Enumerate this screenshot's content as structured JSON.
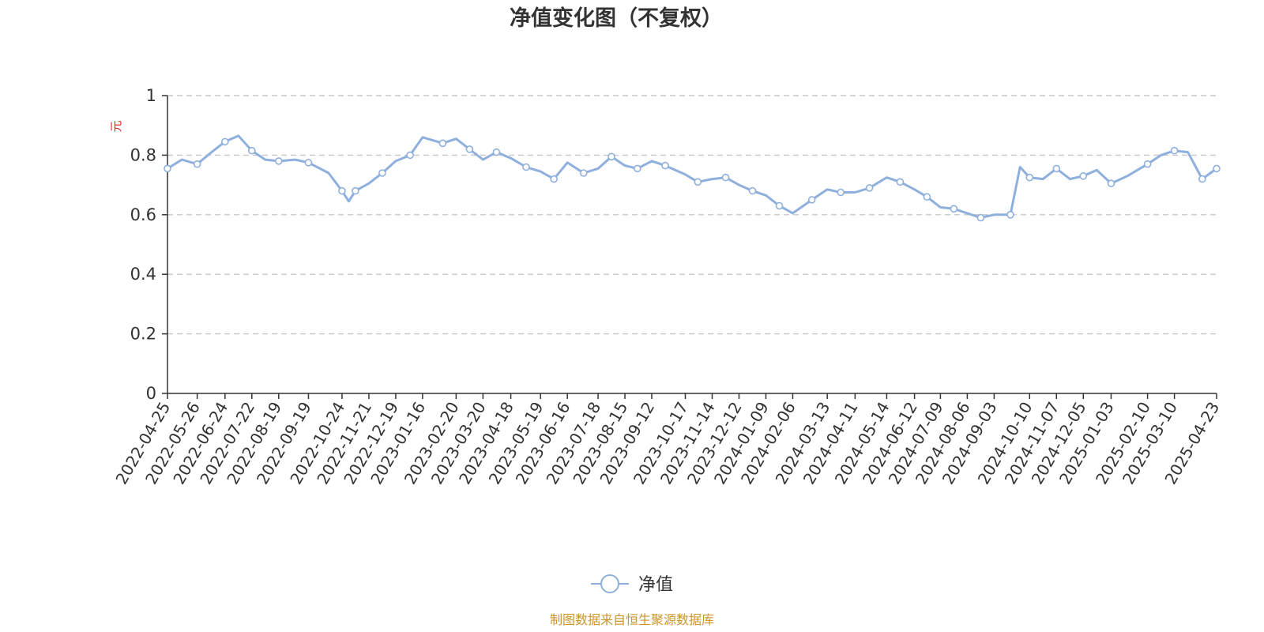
{
  "chart_data": {
    "type": "line",
    "title": "净值变化图（不复权）",
    "ylabel": "元",
    "ylim": [
      0,
      1
    ],
    "yticks": [
      0,
      0.2,
      0.4,
      0.6,
      0.8,
      1
    ],
    "grid": true,
    "legend_position": "bottom-center",
    "x_tick_labels": [
      "2022-04-25",
      "2022-05-26",
      "2022-06-24",
      "2022-07-22",
      "2022-08-19",
      "2022-09-19",
      "2022-10-24",
      "2022-11-21",
      "2022-12-19",
      "2023-01-16",
      "2023-02-20",
      "2023-03-20",
      "2023-04-18",
      "2023-05-19",
      "2023-06-16",
      "2023-07-18",
      "2023-08-15",
      "2023-09-12",
      "2023-10-17",
      "2023-11-14",
      "2023-12-12",
      "2024-01-09",
      "2024-02-06",
      "2024-03-13",
      "2024-04-11",
      "2024-05-14",
      "2024-06-12",
      "2024-07-09",
      "2024-08-06",
      "2024-09-03",
      "2024-10-10",
      "2024-11-07",
      "2024-12-05",
      "2025-01-03",
      "2025-02-10",
      "2025-03-10",
      "2025-04-23"
    ],
    "series": [
      {
        "name": "净值",
        "color": "#8fb0dc",
        "x": [
          "2022-04-25",
          "2022-05-10",
          "2022-05-26",
          "2022-06-10",
          "2022-06-24",
          "2022-07-08",
          "2022-07-22",
          "2022-08-05",
          "2022-08-19",
          "2022-09-05",
          "2022-09-19",
          "2022-10-10",
          "2022-10-24",
          "2022-10-31",
          "2022-11-07",
          "2022-11-21",
          "2022-12-05",
          "2022-12-19",
          "2023-01-03",
          "2023-01-16",
          "2023-02-06",
          "2023-02-20",
          "2023-03-06",
          "2023-03-20",
          "2023-04-03",
          "2023-04-18",
          "2023-05-04",
          "2023-05-19",
          "2023-06-02",
          "2023-06-16",
          "2023-07-03",
          "2023-07-18",
          "2023-08-01",
          "2023-08-15",
          "2023-08-28",
          "2023-09-12",
          "2023-09-26",
          "2023-10-17",
          "2023-10-30",
          "2023-11-14",
          "2023-11-28",
          "2023-12-12",
          "2023-12-26",
          "2024-01-09",
          "2024-01-23",
          "2024-02-06",
          "2024-02-26",
          "2024-03-13",
          "2024-03-27",
          "2024-04-11",
          "2024-04-26",
          "2024-05-14",
          "2024-05-28",
          "2024-06-12",
          "2024-06-25",
          "2024-07-09",
          "2024-07-23",
          "2024-08-06",
          "2024-08-20",
          "2024-09-03",
          "2024-09-20",
          "2024-09-30",
          "2024-10-10",
          "2024-10-24",
          "2024-11-07",
          "2024-11-21",
          "2024-12-05",
          "2024-12-19",
          "2025-01-03",
          "2025-01-20",
          "2025-02-10",
          "2025-02-24",
          "2025-03-10",
          "2025-03-24",
          "2025-04-08",
          "2025-04-23"
        ],
        "values": [
          0.755,
          0.785,
          0.77,
          0.81,
          0.845,
          0.865,
          0.815,
          0.785,
          0.78,
          0.785,
          0.775,
          0.74,
          0.68,
          0.645,
          0.68,
          0.705,
          0.74,
          0.78,
          0.8,
          0.86,
          0.84,
          0.855,
          0.82,
          0.785,
          0.81,
          0.79,
          0.76,
          0.745,
          0.72,
          0.775,
          0.74,
          0.755,
          0.795,
          0.765,
          0.755,
          0.78,
          0.765,
          0.735,
          0.71,
          0.72,
          0.725,
          0.7,
          0.68,
          0.665,
          0.63,
          0.605,
          0.65,
          0.685,
          0.675,
          0.675,
          0.69,
          0.725,
          0.71,
          0.685,
          0.66,
          0.625,
          0.62,
          0.605,
          0.59,
          0.6,
          0.6,
          0.76,
          0.725,
          0.72,
          0.755,
          0.72,
          0.73,
          0.75,
          0.705,
          0.73,
          0.77,
          0.8,
          0.815,
          0.81,
          0.72,
          0.755
        ]
      }
    ]
  },
  "legend": {
    "label": "净值"
  },
  "source_note": "制图数据来自恒生聚源数据库"
}
